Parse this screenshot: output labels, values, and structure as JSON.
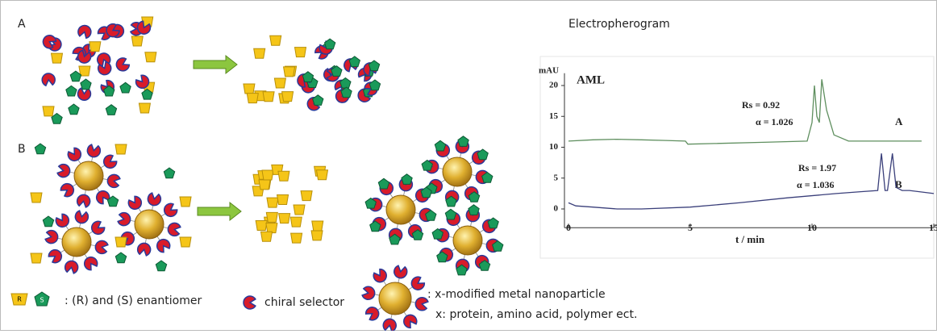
{
  "panels": {
    "a": {
      "label": "A"
    },
    "b": {
      "label": "B"
    }
  },
  "electropherogram": {
    "title": "Electropherogram",
    "y_unit": "mAU",
    "analyte": "AML",
    "x_label": "t / min",
    "xlim": [
      0,
      15
    ],
    "ylim": [
      -2,
      22
    ],
    "xticks": [
      0,
      5,
      10,
      15
    ],
    "yticks": [
      0,
      5,
      10,
      15,
      20
    ],
    "series": [
      {
        "name": "A",
        "color": "#5f8f5f",
        "x": [
          0,
          1,
          2,
          3,
          4,
          4.8,
          4.9,
          6,
          8,
          9.8,
          10.0,
          10.1,
          10.2,
          10.3,
          10.4,
          10.6,
          10.9,
          11.5,
          13,
          14.5
        ],
        "values": [
          11,
          11.2,
          11.3,
          11.2,
          11.1,
          11,
          10.5,
          10.6,
          10.8,
          11,
          14,
          20,
          15,
          14,
          21,
          16,
          12,
          11,
          11,
          11
        ],
        "annotations": [
          "Rs = 0.92",
          "α = 1.026"
        ]
      },
      {
        "name": "B",
        "color": "#3a3f7a",
        "x": [
          0,
          0.3,
          1,
          2,
          3,
          5,
          7,
          9,
          11,
          12,
          12.7,
          12.85,
          13.0,
          13.1,
          13.3,
          13.45,
          13.7,
          14,
          15
        ],
        "values": [
          1,
          0.5,
          0.3,
          0,
          0,
          0.3,
          1,
          1.8,
          2.5,
          2.8,
          3,
          9,
          3,
          3,
          9,
          3.5,
          3,
          3,
          2.5
        ],
        "annotations": [
          "Rs = 1.97",
          "α = 1.036"
        ]
      }
    ]
  },
  "legend": {
    "enantiomer_symbols": [
      "R",
      "S"
    ],
    "enantiomer": ": (R) and (S) enantiomer",
    "selector": "chiral selector",
    "nanoparticle": ": x-modified metal nanoparticle",
    "nanoparticle_note": "x: protein, amino acid, polymer ect."
  }
}
